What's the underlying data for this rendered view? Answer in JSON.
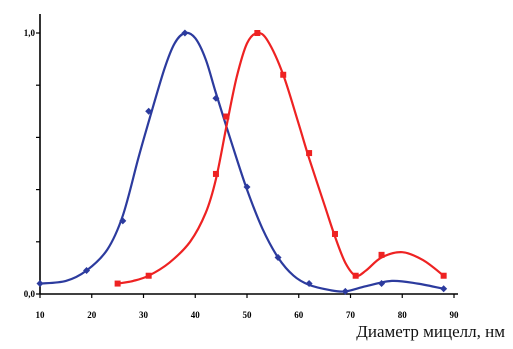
{
  "chart_data": {
    "type": "line",
    "xlabel": "Диаметр мицелл, нм",
    "ylabel": "",
    "xlim": [
      10,
      90
    ],
    "ylim": [
      0,
      1
    ],
    "x_ticks": [
      10,
      20,
      30,
      40,
      50,
      60,
      70,
      80,
      90
    ],
    "y_ticks": [
      {
        "value": 0,
        "label": "0,0"
      },
      {
        "value": 1,
        "label": "1,0"
      }
    ],
    "grid": false,
    "legend": "none",
    "series": [
      {
        "color": "#2c3b9e",
        "marker": "diamond",
        "points": [
          [
            10,
            0.04
          ],
          [
            19,
            0.09
          ],
          [
            26,
            0.28
          ],
          [
            31,
            0.7
          ],
          [
            38,
            1.0
          ],
          [
            44,
            0.75
          ],
          [
            50,
            0.41
          ],
          [
            56,
            0.14
          ],
          [
            62,
            0.04
          ],
          [
            69,
            0.01
          ],
          [
            76,
            0.04
          ],
          [
            88,
            0.02
          ]
        ],
        "curve": [
          [
            10,
            0.04
          ],
          [
            15,
            0.05
          ],
          [
            19,
            0.09
          ],
          [
            23,
            0.17
          ],
          [
            26,
            0.3
          ],
          [
            29,
            0.52
          ],
          [
            31,
            0.66
          ],
          [
            34,
            0.86
          ],
          [
            36,
            0.96
          ],
          [
            38,
            1.0
          ],
          [
            40,
            0.98
          ],
          [
            42,
            0.9
          ],
          [
            44,
            0.77
          ],
          [
            47,
            0.58
          ],
          [
            50,
            0.4
          ],
          [
            53,
            0.25
          ],
          [
            56,
            0.14
          ],
          [
            59,
            0.07
          ],
          [
            62,
            0.035
          ],
          [
            66,
            0.015
          ],
          [
            69,
            0.01
          ],
          [
            73,
            0.03
          ],
          [
            78,
            0.05
          ],
          [
            83,
            0.04
          ],
          [
            88,
            0.02
          ]
        ]
      },
      {
        "color": "#ee2222",
        "marker": "square",
        "points": [
          [
            25,
            0.04
          ],
          [
            31,
            0.07
          ],
          [
            44,
            0.46
          ],
          [
            46,
            0.68
          ],
          [
            52,
            1.0
          ],
          [
            57,
            0.84
          ],
          [
            62,
            0.54
          ],
          [
            67,
            0.23
          ],
          [
            71,
            0.07
          ],
          [
            76,
            0.15
          ],
          [
            88,
            0.07
          ]
        ],
        "curve": [
          [
            25,
            0.04
          ],
          [
            28,
            0.05
          ],
          [
            31,
            0.07
          ],
          [
            35,
            0.12
          ],
          [
            39,
            0.2
          ],
          [
            42,
            0.31
          ],
          [
            44,
            0.44
          ],
          [
            46,
            0.64
          ],
          [
            48,
            0.83
          ],
          [
            50,
            0.96
          ],
          [
            52,
            1.0
          ],
          [
            54,
            0.97
          ],
          [
            57,
            0.84
          ],
          [
            60,
            0.65
          ],
          [
            62,
            0.52
          ],
          [
            65,
            0.34
          ],
          [
            67,
            0.22
          ],
          [
            69,
            0.12
          ],
          [
            71,
            0.07
          ],
          [
            73,
            0.09
          ],
          [
            76,
            0.14
          ],
          [
            80,
            0.16
          ],
          [
            84,
            0.13
          ],
          [
            88,
            0.07
          ]
        ]
      }
    ]
  }
}
